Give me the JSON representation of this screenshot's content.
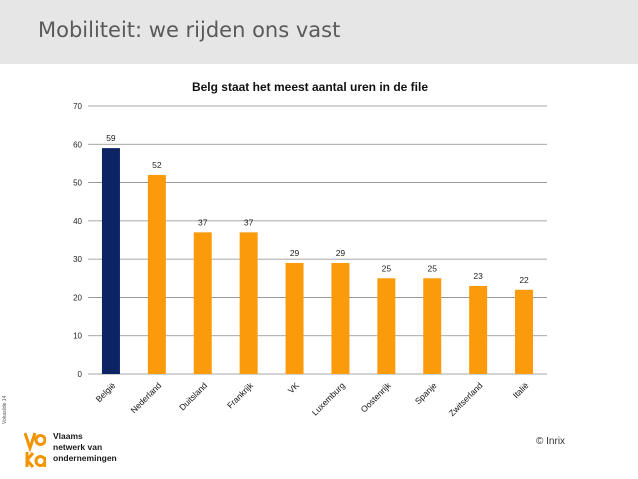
{
  "slide": {
    "title": "Mobiliteit: we rijden ons vast",
    "slide_number": "Vokaslide 14",
    "credit": "© Inrix"
  },
  "logo": {
    "mark": "vo ka",
    "line1": "Vlaams",
    "line2": "netwerk van",
    "line3": "ondernemingen"
  },
  "colors": {
    "highlight_bar": "#0c2364",
    "default_bar": "#fb9a0a",
    "gridline": "#8a8a8a",
    "header_band": "#e6e6e6"
  },
  "chart_data": {
    "type": "bar",
    "title": "Belg staat het meest aantal uren in de file",
    "xlabel": "",
    "ylabel": "",
    "categories": [
      "België",
      "Nederland",
      "Duitsland",
      "Frankrijk",
      "VK",
      "Luxemburg",
      "Oostenrijk",
      "Spanje",
      "Zwitserland",
      "Italië"
    ],
    "values": [
      59,
      52,
      37,
      37,
      29,
      29,
      25,
      25,
      23,
      22
    ],
    "data_labels": [
      "59",
      "52",
      "37",
      "37",
      "29",
      "29",
      "25",
      "25",
      "23",
      "22"
    ],
    "highlight_category": "België",
    "ylim": [
      0,
      70
    ],
    "yticks": [
      0,
      10,
      20,
      30,
      40,
      50,
      60,
      70
    ],
    "grid": true,
    "legend": "none"
  }
}
